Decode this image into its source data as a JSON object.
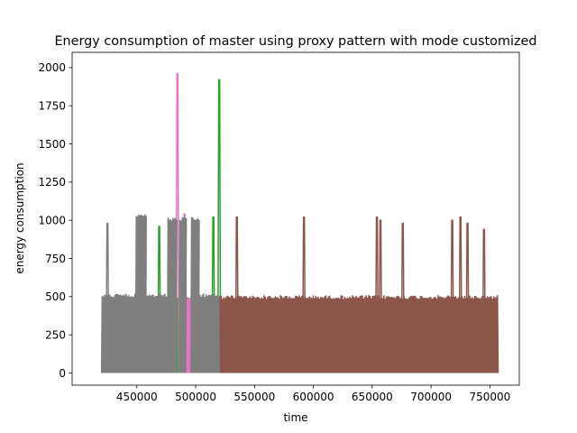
{
  "chart_data": {
    "type": "line",
    "title": "Energy consumption of master using proxy pattern with mode customized",
    "xlabel": "time",
    "ylabel": "energy consumption",
    "xlim": [
      395000,
      775000
    ],
    "ylim": [
      -80,
      2100
    ],
    "xticks": [
      450000,
      500000,
      550000,
      600000,
      650000,
      700000,
      750000
    ],
    "xtick_labels": [
      "450000",
      "500000",
      "550000",
      "600000",
      "650000",
      "700000",
      "750000"
    ],
    "yticks": [
      0,
      250,
      500,
      750,
      1000,
      1250,
      1500,
      1750,
      2000
    ],
    "ytick_labels": [
      "0",
      "250",
      "500",
      "750",
      "1000",
      "1250",
      "1500",
      "1750",
      "2000"
    ],
    "grid": false,
    "series": [
      {
        "color": "#2ca02c",
        "segments": [
          {
            "x_range": [
              445000,
              520000
            ],
            "low": 0,
            "high": 510
          }
        ],
        "spikes": [
          {
            "x": 469000,
            "y": 960
          },
          {
            "x": 515000,
            "y": 1020
          },
          {
            "x": 520000,
            "y": 1920
          }
        ]
      },
      {
        "color": "#8c564b",
        "segments": [
          {
            "x_range": [
              520000,
              757000
            ],
            "low": 0,
            "high": 510
          }
        ],
        "spikes": [
          {
            "x": 535000,
            "y": 1020
          },
          {
            "x": 592000,
            "y": 1020
          },
          {
            "x": 654000,
            "y": 1020
          },
          {
            "x": 657000,
            "y": 1000
          },
          {
            "x": 676000,
            "y": 980
          },
          {
            "x": 718000,
            "y": 1000
          },
          {
            "x": 725000,
            "y": 1020
          },
          {
            "x": 731000,
            "y": 980
          },
          {
            "x": 745000,
            "y": 940
          }
        ]
      },
      {
        "color": "#e377c2",
        "segments": [
          {
            "x_range": [
              449000,
              458000
            ],
            "low": 0,
            "high": 500
          },
          {
            "x_range": [
              461000,
              468000
            ],
            "low": 0,
            "high": 500
          },
          {
            "x_range": [
              476000,
              483000
            ],
            "low": 0,
            "high": 500
          },
          {
            "x_range": [
              492000,
              496000
            ],
            "low": 0,
            "high": 500
          },
          {
            "x_range": [
              508000,
              512000
            ],
            "low": 0,
            "high": 500
          }
        ],
        "spikes": [
          {
            "x": 484500,
            "y": 1960
          },
          {
            "x": 490500,
            "y": 1040
          }
        ]
      },
      {
        "color": "#7f7f7f",
        "segments": [
          {
            "x_range": [
              420000,
              449000
            ],
            "low": 0,
            "high": 520
          },
          {
            "x_range": [
              449000,
              458000
            ],
            "low": 0,
            "high": 1040
          },
          {
            "x_range": [
              458000,
              470000
            ],
            "low": 0,
            "high": 520
          },
          {
            "x_range": [
              470000,
              476000
            ],
            "low": 0,
            "high": 520
          },
          {
            "x_range": [
              476000,
              484000
            ],
            "low": 0,
            "high": 1020
          },
          {
            "x_range": [
              486000,
              492000
            ],
            "low": 0,
            "high": 1020
          },
          {
            "x_range": [
              496000,
              503000
            ],
            "low": 0,
            "high": 1020
          },
          {
            "x_range": [
              503000,
              520000
            ],
            "low": 0,
            "high": 520
          }
        ],
        "spikes": [
          {
            "x": 425000,
            "y": 980
          }
        ]
      }
    ]
  }
}
